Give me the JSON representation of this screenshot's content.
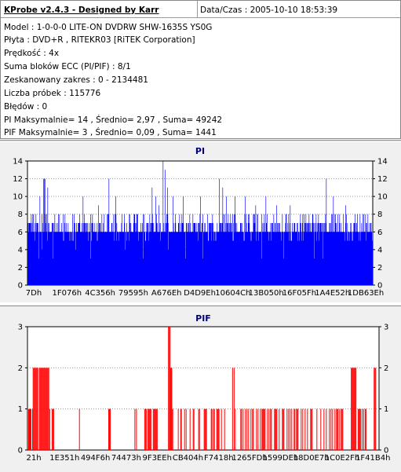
{
  "header": {
    "app_title": "KProbe v2.4.3 - Designed by Karr",
    "date_label": "Data/Czas : 2005-10-10 18:53:39"
  },
  "info_lines": [
    "Model : 1-0-0-0 LITE-ON DVDRW SHW-1635S  YS0G",
    "Płyta : DVD+R , RITEKR03 [RiTEK Corporation]",
    "Prędkość : 4x",
    "Suma bloków ECC (PI/PIF) : 8/1",
    "Zeskanowany zakres : 0 - 2134481",
    "Liczba próbek : 115776",
    "Błędów : 0",
    "PI Maksymalnie= 14 , Średnio= 2,97 , Suma= 49242",
    "PIF Maksymalnie= 3 , Średnio= 0,09 , Suma= 1441"
  ],
  "chart_data": [
    {
      "type": "bar",
      "title": "PI",
      "color": "#0000ff",
      "ylim": [
        0,
        14
      ],
      "yticks": [
        0,
        2,
        4,
        6,
        8,
        10,
        12,
        14
      ],
      "xtick_labels": [
        "7Dh",
        "1F076h",
        "4C356h",
        "79595h",
        "A676Eh",
        "D4D9Eh",
        "10604Ch",
        "13B050h",
        "16F05Fh",
        "1A4E52h",
        "1DB63Eh"
      ],
      "grid": true,
      "baseline_value": 6,
      "typical_range": [
        5,
        8
      ],
      "spikes": [
        {
          "pos": 0.035,
          "value": 10
        },
        {
          "pos": 0.045,
          "value": 12
        },
        {
          "pos": 0.048,
          "value": 12
        },
        {
          "pos": 0.05,
          "value": 12
        },
        {
          "pos": 0.058,
          "value": 11
        },
        {
          "pos": 0.16,
          "value": 10
        },
        {
          "pos": 0.205,
          "value": 9
        },
        {
          "pos": 0.235,
          "value": 12
        },
        {
          "pos": 0.255,
          "value": 10
        },
        {
          "pos": 0.36,
          "value": 11
        },
        {
          "pos": 0.37,
          "value": 10
        },
        {
          "pos": 0.38,
          "value": 9
        },
        {
          "pos": 0.392,
          "value": 14
        },
        {
          "pos": 0.398,
          "value": 13
        },
        {
          "pos": 0.405,
          "value": 11
        },
        {
          "pos": 0.42,
          "value": 10
        },
        {
          "pos": 0.45,
          "value": 10
        },
        {
          "pos": 0.5,
          "value": 10
        },
        {
          "pos": 0.555,
          "value": 12
        },
        {
          "pos": 0.565,
          "value": 11
        },
        {
          "pos": 0.575,
          "value": 10
        },
        {
          "pos": 0.6,
          "value": 10
        },
        {
          "pos": 0.63,
          "value": 10
        },
        {
          "pos": 0.66,
          "value": 9
        },
        {
          "pos": 0.69,
          "value": 10
        },
        {
          "pos": 0.72,
          "value": 9
        },
        {
          "pos": 0.76,
          "value": 9
        },
        {
          "pos": 0.8,
          "value": 8
        },
        {
          "pos": 0.865,
          "value": 12
        },
        {
          "pos": 0.885,
          "value": 10
        },
        {
          "pos": 0.92,
          "value": 9
        },
        {
          "pos": 0.955,
          "value": 8
        }
      ]
    },
    {
      "type": "bar",
      "title": "PIF",
      "color": "#ff0000",
      "ylim": [
        0,
        3
      ],
      "yticks": [
        0,
        1,
        2,
        3
      ],
      "xtick_labels": [
        "21h",
        "1E351h",
        "494F6h",
        "74473h",
        "9F3EEh",
        "CB404h",
        "F7418h",
        "1265FDh",
        "1599DEh",
        "18D0E7h",
        "1C0E2Fh",
        "1F41B4h"
      ],
      "grid": true,
      "clusters": [
        {
          "from": 0.0,
          "to": 0.015,
          "value": 1,
          "density": 0.6
        },
        {
          "from": 0.015,
          "to": 0.035,
          "value": 2,
          "density": 0.9
        },
        {
          "from": 0.035,
          "to": 0.06,
          "value": 2,
          "density": 1.0
        },
        {
          "from": 0.06,
          "to": 0.075,
          "value": 1,
          "density": 0.6
        },
        {
          "from": 0.14,
          "to": 0.15,
          "value": 1,
          "density": 0.3
        },
        {
          "from": 0.23,
          "to": 0.235,
          "value": 1,
          "density": 0.5
        },
        {
          "from": 0.3,
          "to": 0.32,
          "value": 1,
          "density": 0.4
        },
        {
          "from": 0.33,
          "to": 0.37,
          "value": 1,
          "density": 0.5
        },
        {
          "from": 0.4,
          "to": 0.405,
          "value": 3,
          "density": 1.0
        },
        {
          "from": 0.405,
          "to": 0.41,
          "value": 2,
          "density": 1.0
        },
        {
          "from": 0.41,
          "to": 0.56,
          "value": 1,
          "density": 0.5
        },
        {
          "from": 0.58,
          "to": 0.59,
          "value": 2,
          "density": 0.5
        },
        {
          "from": 0.59,
          "to": 0.9,
          "value": 1,
          "density": 0.45
        },
        {
          "from": 0.92,
          "to": 0.935,
          "value": 2,
          "density": 0.8
        },
        {
          "from": 0.935,
          "to": 0.965,
          "value": 1,
          "density": 0.5
        },
        {
          "from": 0.985,
          "to": 0.99,
          "value": 2,
          "density": 1.0
        }
      ]
    }
  ]
}
